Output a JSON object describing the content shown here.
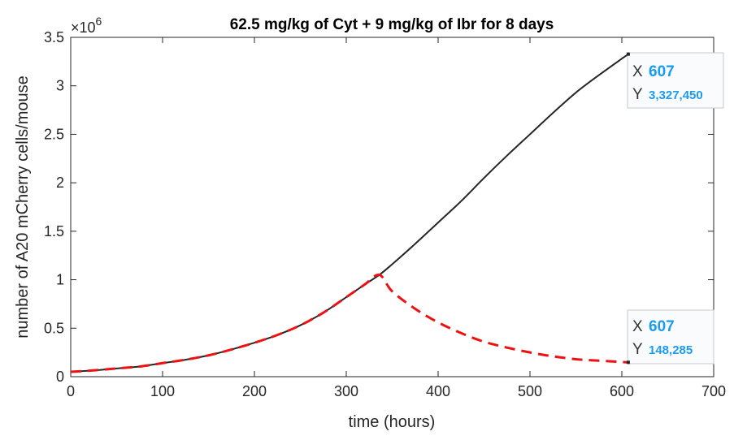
{
  "chart_data": {
    "type": "line",
    "title": "62.5 mg/kg of Cyt + 9 mg/kg of Ibr for 8 days",
    "xlabel": "time (hours)",
    "ylabel": "number of A20 mCherry cells/mouse",
    "y_multiplier_base": "×10",
    "y_multiplier_exp": "6",
    "xlim": [
      0,
      700
    ],
    "ylim": [
      0,
      3.5
    ],
    "xticks": [
      0,
      100,
      200,
      300,
      400,
      500,
      600,
      700
    ],
    "yticks": [
      0,
      0.5,
      1,
      1.5,
      2,
      2.5,
      3,
      3.5
    ],
    "grid": false,
    "series": [
      {
        "color": "#262626",
        "style": "solid",
        "x": [
          0,
          25,
          50,
          75,
          100,
          125,
          150,
          175,
          200,
          225,
          250,
          275,
          300,
          320,
          336,
          350,
          375,
          400,
          425,
          450,
          475,
          500,
          525,
          550,
          575,
          607
        ],
        "y": [
          0.05,
          0.065,
          0.085,
          0.105,
          0.14,
          0.175,
          0.22,
          0.28,
          0.35,
          0.43,
          0.53,
          0.66,
          0.82,
          0.95,
          1.05,
          1.16,
          1.37,
          1.59,
          1.81,
          2.05,
          2.28,
          2.5,
          2.72,
          2.93,
          3.11,
          3.327
        ]
      },
      {
        "color": "#ee1111",
        "style": "dashed",
        "x": [
          0,
          25,
          50,
          75,
          100,
          125,
          150,
          175,
          200,
          225,
          250,
          275,
          300,
          320,
          336,
          350,
          375,
          400,
          425,
          450,
          475,
          500,
          525,
          550,
          575,
          607
        ],
        "y": [
          0.05,
          0.065,
          0.085,
          0.105,
          0.14,
          0.175,
          0.22,
          0.28,
          0.35,
          0.43,
          0.53,
          0.66,
          0.82,
          0.95,
          1.05,
          0.88,
          0.7,
          0.56,
          0.45,
          0.36,
          0.3,
          0.25,
          0.21,
          0.18,
          0.165,
          0.148
        ]
      }
    ],
    "datatips": [
      {
        "x_label": "X",
        "x_value": "607",
        "y_label": "Y",
        "y_value": "3,327,450"
      },
      {
        "x_label": "X",
        "x_value": "607",
        "y_label": "Y",
        "y_value": "148,285"
      }
    ]
  }
}
